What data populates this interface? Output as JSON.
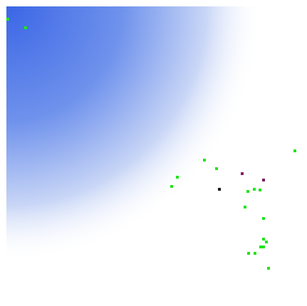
{
  "heatmap": {
    "colors": {
      "cold": "#3f6ee8",
      "mid": "#ffffff",
      "warm": "#f7e36b",
      "hot": "#c62a2a",
      "marker": "#22e51a",
      "special_marker_1": "#8b1e6e",
      "special_marker_2": "#1a1a1a",
      "special_marker_3": "#7a1f66"
    },
    "icons": {
      "data_point": "green-square-marker",
      "special_point": "dark-square-marker"
    }
  }
}
